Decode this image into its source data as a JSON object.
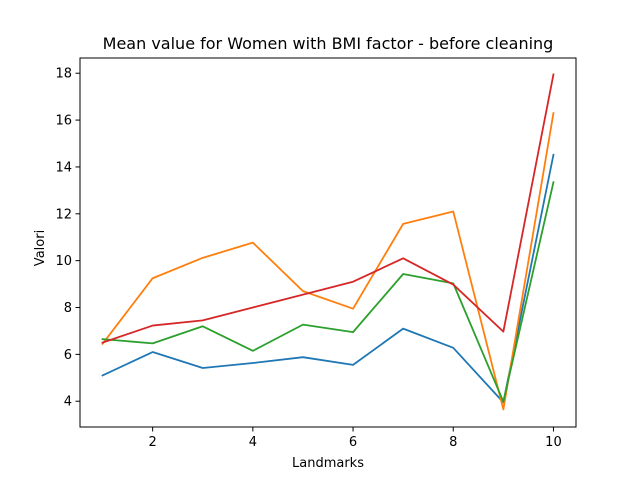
{
  "chart_data": {
    "type": "line",
    "title": "Mean value for Women with BMI factor - before cleaning",
    "xlabel": "Landmarks",
    "ylabel": "Valori",
    "x": [
      1,
      2,
      3,
      4,
      5,
      6,
      7,
      8,
      9,
      10
    ],
    "xticks": [
      2,
      4,
      6,
      8,
      10
    ],
    "yticks": [
      4,
      6,
      8,
      10,
      12,
      14,
      16,
      18
    ],
    "xlim": [
      0.55,
      10.45
    ],
    "ylim": [
      2.9,
      18.65
    ],
    "grid": false,
    "series": [
      {
        "color": "#1f77b4",
        "values": [
          5.1,
          6.1,
          5.42,
          5.63,
          5.88,
          5.55,
          7.1,
          6.28,
          3.95,
          14.52
        ]
      },
      {
        "color": "#ff7f0e",
        "values": [
          6.45,
          9.25,
          10.12,
          10.77,
          8.7,
          7.95,
          11.57,
          12.1,
          3.65,
          16.3
        ]
      },
      {
        "color": "#2ca02c",
        "values": [
          6.65,
          6.47,
          7.2,
          6.15,
          7.27,
          6.95,
          9.43,
          9.03,
          3.98,
          13.35
        ]
      },
      {
        "color": "#d62728",
        "values": [
          6.5,
          7.23,
          7.45,
          8.0,
          8.55,
          9.1,
          10.1,
          8.98,
          6.97,
          17.95
        ]
      }
    ]
  }
}
